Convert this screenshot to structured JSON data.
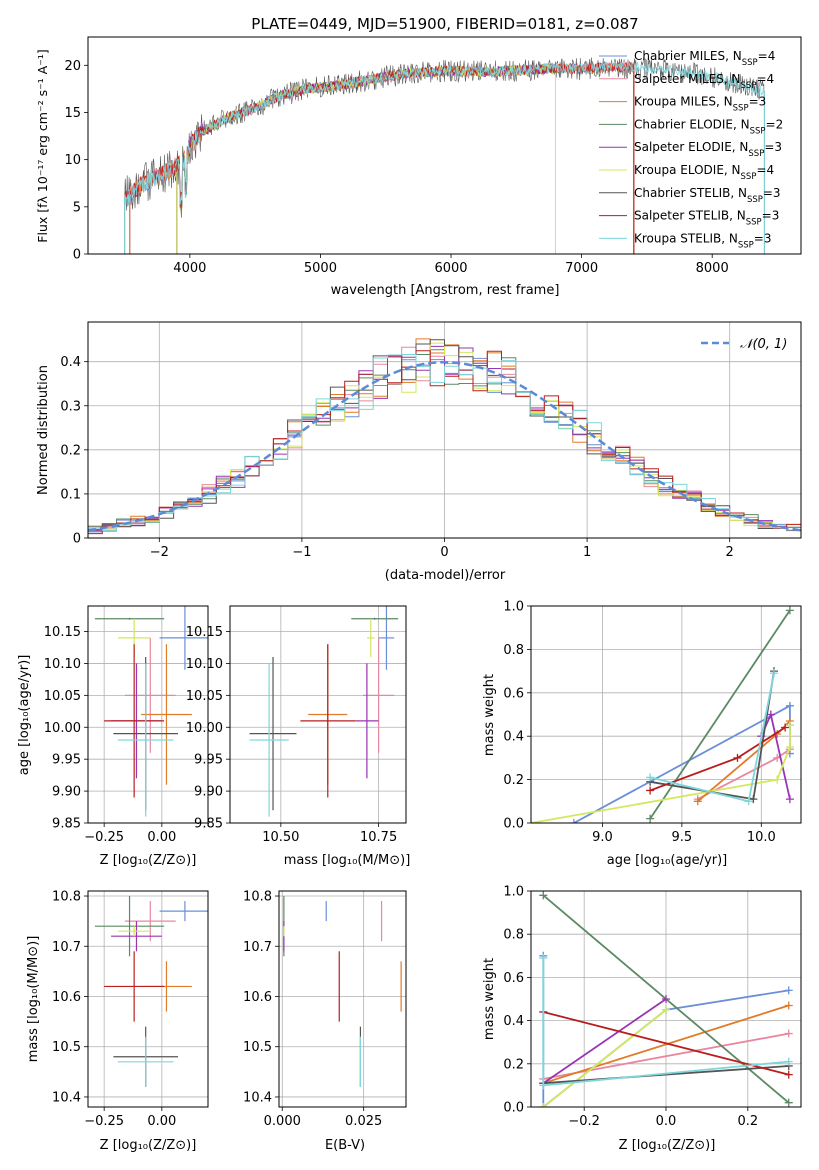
{
  "chart_data": [
    {
      "type": "line",
      "title": "PLATE=0449, MJD=51900, FIBERID=0181, z=0.087",
      "xlabel": "wavelength [Angstrom, rest frame]",
      "ylabel": "Flux [fλ 10⁻¹⁷ erg cm⁻² s⁻¹ A⁻¹]",
      "xlim": [
        3220,
        8680
      ],
      "ylim": [
        0,
        23
      ],
      "xticks": [
        4000,
        5000,
        6000,
        7000,
        8000
      ],
      "yticks": [
        0,
        5,
        10,
        15,
        20
      ],
      "grid": false,
      "legend": "top-right",
      "continuum": {
        "x": [
          3500,
          3650,
          3800,
          3950,
          4000,
          4100,
          4300,
          4500,
          4700,
          4900,
          5100,
          5300,
          5500,
          5700,
          6000,
          6300,
          6600,
          6800,
          7000,
          7200,
          7400,
          7600,
          7800,
          8000,
          8200,
          8400
        ],
        "y": [
          6.0,
          7.5,
          8.5,
          9.8,
          11.5,
          13.0,
          14.5,
          15.5,
          16.8,
          17.5,
          17.8,
          18.3,
          18.8,
          19.2,
          19.4,
          19.3,
          19.5,
          19.7,
          19.6,
          19.8,
          19.8,
          19.6,
          19.2,
          18.8,
          18.0,
          17.2
        ]
      },
      "series": [
        {
          "name": "Chabrier MILES, N_SSP=4",
          "color": "#6a8fd8",
          "x_range": [
            3540,
            7400
          ]
        },
        {
          "name": "Salpeter MILES, N_SSP=4",
          "color": "#e8879f",
          "x_range": [
            3540,
            7400
          ]
        },
        {
          "name": "Kroupa MILES, N_SSP=3",
          "color": "#e07b28",
          "x_range": [
            3540,
            7400
          ]
        },
        {
          "name": "Chabrier ELODIE, N_SSP=2",
          "color": "#5c8a64",
          "x_range": [
            3900,
            6800
          ]
        },
        {
          "name": "Salpeter ELODIE, N_SSP=3",
          "color": "#9a34b4",
          "x_range": [
            3900,
            6800
          ]
        },
        {
          "name": "Kroupa ELODIE, N_SSP=4",
          "color": "#d3e85c",
          "x_range": [
            3900,
            6800
          ]
        },
        {
          "name": "Chabrier STELIB, N_SSP=3",
          "color": "#555555",
          "x_range": [
            3500,
            8400
          ]
        },
        {
          "name": "Salpeter STELIB, N_SSP=3",
          "color": "#b81e1e",
          "x_range": [
            3500,
            7400
          ]
        },
        {
          "name": "Kroupa STELIB, N_SSP=3",
          "color": "#7dd6dc",
          "x_range": [
            3500,
            8400
          ]
        }
      ],
      "legend_entries": [
        {
          "prefix": "Chabrier MILES, N",
          "suffix": "=4"
        },
        {
          "prefix": "Salpeter MILES, N",
          "suffix": "=4"
        },
        {
          "prefix": "Kroupa MILES, N",
          "suffix": "=3"
        },
        {
          "prefix": "Chabrier ELODIE, N",
          "suffix": "=2"
        },
        {
          "prefix": "Salpeter ELODIE, N",
          "suffix": "=3"
        },
        {
          "prefix": "Kroupa ELODIE, N",
          "suffix": "=4"
        },
        {
          "prefix": "Chabrier STELIB, N",
          "suffix": "=3"
        },
        {
          "prefix": "Salpeter STELIB, N",
          "suffix": "=3"
        },
        {
          "prefix": "Kroupa STELIB, N",
          "suffix": "=3"
        }
      ],
      "legend_subscript": "SSP"
    },
    {
      "type": "line",
      "xlabel": "(data-model)/error",
      "ylabel": "Normed distribution",
      "xlim": [
        -2.5,
        2.5
      ],
      "ylim": [
        0,
        0.49
      ],
      "xticks": [
        -2,
        -1,
        0,
        1,
        2
      ],
      "yticks": [
        0.0,
        0.1,
        0.2,
        0.3,
        0.4
      ],
      "grid": true,
      "legend": "top-right",
      "reference_curve": {
        "name": "𝒩(0, 1)",
        "color": "#5b8ad6",
        "style": "dashed"
      },
      "histograms": {
        "bin_width": 0.1,
        "x_start": -2.5,
        "series": [
          {
            "name": "Chabrier MILES",
            "color": "#6a8fd8"
          },
          {
            "name": "Salpeter MILES",
            "color": "#e8879f"
          },
          {
            "name": "Kroupa MILES",
            "color": "#e07b28"
          },
          {
            "name": "Chabrier ELODIE",
            "color": "#5c8a64"
          },
          {
            "name": "Salpeter ELODIE",
            "color": "#9a34b4"
          },
          {
            "name": "Kroupa ELODIE",
            "color": "#d3e85c"
          },
          {
            "name": "Chabrier STELIB",
            "color": "#555555"
          },
          {
            "name": "Salpeter STELIB",
            "color": "#b81e1e"
          },
          {
            "name": "Kroupa STELIB",
            "color": "#7dd6dc"
          }
        ]
      }
    },
    {
      "type": "scatter",
      "xlabel": "Z [log₁₀(Z/Z⊙)]",
      "ylabel": "age  [log₁₀(age/yr)]",
      "xlim": [
        -0.32,
        0.2
      ],
      "ylim": [
        9.85,
        10.19
      ],
      "xticks": [
        -0.25,
        0.0
      ],
      "xticklabels": [
        "−0.25",
        "0.00"
      ],
      "yticks": [
        9.85,
        9.9,
        9.95,
        10.0,
        10.05,
        10.1,
        10.15
      ],
      "yticklabels": [
        "9.85",
        "9.90",
        "9.95",
        "10.00",
        "10.05",
        "10.10",
        "10.15"
      ],
      "grid": true,
      "points": [
        {
          "color": "#6a8fd8",
          "x": 0.1,
          "xerr": 0.11,
          "y": 10.14,
          "yerr": 0.05
        },
        {
          "color": "#e8879f",
          "x": -0.05,
          "xerr": 0.11,
          "y": 10.05,
          "yerr": 0.09
        },
        {
          "color": "#e07b28",
          "x": 0.02,
          "xerr": 0.11,
          "y": 10.02,
          "yerr": 0.11
        },
        {
          "color": "#5c8a64",
          "x": -0.14,
          "xerr": 0.15,
          "y": 10.17,
          "yerr": 0.0
        },
        {
          "color": "#9a34b4",
          "x": -0.11,
          "xerr": 0.11,
          "y": 10.01,
          "yerr": 0.09
        },
        {
          "color": "#d3e85c",
          "x": -0.12,
          "xerr": 0.07,
          "y": 10.14,
          "yerr": 0.03
        },
        {
          "color": "#555555",
          "x": -0.07,
          "xerr": 0.14,
          "y": 9.99,
          "yerr": 0.12
        },
        {
          "color": "#b81e1e",
          "x": -0.12,
          "xerr": 0.13,
          "y": 10.01,
          "yerr": 0.12
        },
        {
          "color": "#7dd6dc",
          "x": -0.07,
          "xerr": 0.12,
          "y": 9.98,
          "yerr": 0.12
        }
      ]
    },
    {
      "type": "scatter",
      "xlabel": "mass [log₁₀(M/M⊙)]",
      "xlim": [
        10.37,
        10.82
      ],
      "ylim": [
        9.85,
        10.19
      ],
      "xticks": [
        10.5,
        10.75
      ],
      "xticklabels": [
        "10.50",
        "10.75"
      ],
      "yticks": [
        9.85,
        9.9,
        9.95,
        10.0,
        10.05,
        10.1,
        10.15
      ],
      "yticklabels": [
        "9.85",
        "9.90",
        "9.95",
        "10.00",
        "10.05",
        "10.10",
        "10.15"
      ],
      "grid": true,
      "points": [
        {
          "color": "#6a8fd8",
          "x": 10.77,
          "xerr": 0.02,
          "y": 10.14,
          "yerr": 0.05
        },
        {
          "color": "#e8879f",
          "x": 10.75,
          "xerr": 0.04,
          "y": 10.05,
          "yerr": 0.09
        },
        {
          "color": "#e07b28",
          "x": 10.62,
          "xerr": 0.05,
          "y": 10.02,
          "yerr": 0.11
        },
        {
          "color": "#5c8a64",
          "x": 10.74,
          "xerr": 0.06,
          "y": 10.17,
          "yerr": 0.0
        },
        {
          "color": "#9a34b4",
          "x": 10.72,
          "xerr": 0.03,
          "y": 10.01,
          "yerr": 0.09
        },
        {
          "color": "#d3e85c",
          "x": 10.73,
          "xerr": 0.01,
          "y": 10.14,
          "yerr": 0.03
        },
        {
          "color": "#555555",
          "x": 10.48,
          "xerr": 0.06,
          "y": 9.99,
          "yerr": 0.12
        },
        {
          "color": "#b81e1e",
          "x": 10.62,
          "xerr": 0.07,
          "y": 10.01,
          "yerr": 0.12
        },
        {
          "color": "#7dd6dc",
          "x": 10.47,
          "xerr": 0.05,
          "y": 9.98,
          "yerr": 0.12
        }
      ]
    },
    {
      "type": "line",
      "xlabel": "age  [log₁₀(age/yr)]",
      "ylabel": "mass weight",
      "xlim": [
        8.55,
        10.25
      ],
      "ylim": [
        0.0,
        1.0
      ],
      "xticks": [
        9.0,
        9.5,
        10.0
      ],
      "xticklabels": [
        "9.0",
        "9.5",
        "10.0"
      ],
      "yticks": [
        0.0,
        0.2,
        0.4,
        0.6,
        0.8,
        1.0
      ],
      "yticklabels": [
        "0.0",
        "0.2",
        "0.4",
        "0.6",
        "0.8",
        "1.0"
      ],
      "grid": true,
      "series": [
        {
          "color": "#6a8fd8",
          "x": [
            8.82,
            10.18,
            10.18,
            10.18
          ],
          "y": [
            0.0,
            0.54,
            0.45,
            0.32
          ]
        },
        {
          "color": "#e8879f",
          "x": [
            9.6,
            10.1,
            10.18
          ],
          "y": [
            0.11,
            0.3,
            0.34
          ]
        },
        {
          "color": "#e07b28",
          "x": [
            9.6,
            10.1,
            10.18
          ],
          "y": [
            0.1,
            0.41,
            0.47
          ]
        },
        {
          "color": "#5c8a64",
          "x": [
            9.3,
            10.18
          ],
          "y": [
            0.02,
            0.98
          ]
        },
        {
          "color": "#9a34b4",
          "x": [
            10.0,
            10.06,
            10.18
          ],
          "y": [
            0.4,
            0.5,
            0.11
          ]
        },
        {
          "color": "#d3e85c",
          "x": [
            8.55,
            10.1,
            10.18,
            10.18
          ],
          "y": [
            0.0,
            0.2,
            0.35,
            0.45
          ]
        },
        {
          "color": "#555555",
          "x": [
            9.3,
            9.95,
            10.08
          ],
          "y": [
            0.19,
            0.11,
            0.7
          ]
        },
        {
          "color": "#b81e1e",
          "x": [
            9.3,
            9.85,
            10.15
          ],
          "y": [
            0.15,
            0.3,
            0.44
          ]
        },
        {
          "color": "#7dd6dc",
          "x": [
            9.3,
            9.92,
            10.08
          ],
          "y": [
            0.21,
            0.1,
            0.69
          ]
        }
      ]
    },
    {
      "type": "scatter",
      "xlabel": "Z [log₁₀(Z/Z⊙)]",
      "ylabel": "mass [log₁₀(M/M⊙)]",
      "xlim": [
        -0.32,
        0.2
      ],
      "ylim": [
        10.38,
        10.81
      ],
      "xticks": [
        -0.25,
        0.0
      ],
      "xticklabels": [
        "−0.25",
        "0.00"
      ],
      "yticks": [
        10.4,
        10.5,
        10.6,
        10.7,
        10.8
      ],
      "yticklabels": [
        "10.4",
        "10.5",
        "10.6",
        "10.7",
        "10.8"
      ],
      "grid": true,
      "points": [
        {
          "color": "#6a8fd8",
          "x": 0.1,
          "xerr": 0.11,
          "y": 10.77,
          "yerr": 0.02
        },
        {
          "color": "#e8879f",
          "x": -0.05,
          "xerr": 0.11,
          "y": 10.75,
          "yerr": 0.04
        },
        {
          "color": "#e07b28",
          "x": 0.02,
          "xerr": 0.11,
          "y": 10.62,
          "yerr": 0.05
        },
        {
          "color": "#5c8a64",
          "x": -0.14,
          "xerr": 0.15,
          "y": 10.74,
          "yerr": 0.06
        },
        {
          "color": "#9a34b4",
          "x": -0.11,
          "xerr": 0.11,
          "y": 10.72,
          "yerr": 0.03
        },
        {
          "color": "#d3e85c",
          "x": -0.12,
          "xerr": 0.07,
          "y": 10.73,
          "yerr": 0.01
        },
        {
          "color": "#555555",
          "x": -0.07,
          "xerr": 0.14,
          "y": 10.48,
          "yerr": 0.06
        },
        {
          "color": "#b81e1e",
          "x": -0.12,
          "xerr": 0.13,
          "y": 10.62,
          "yerr": 0.07
        },
        {
          "color": "#7dd6dc",
          "x": -0.07,
          "xerr": 0.12,
          "y": 10.47,
          "yerr": 0.05
        }
      ]
    },
    {
      "type": "scatter",
      "xlabel": "E(B-V)",
      "xlim": [
        -0.001,
        0.038
      ],
      "ylim": [
        10.38,
        10.81
      ],
      "xticks": [
        0.0,
        0.025
      ],
      "xticklabels": [
        "0.000",
        "0.025"
      ],
      "yticks": [
        10.4,
        10.5,
        10.6,
        10.7,
        10.8
      ],
      "yticklabels": [
        "10.4",
        "10.5",
        "10.6",
        "10.7",
        "10.8"
      ],
      "grid": true,
      "points": [
        {
          "color": "#6a8fd8",
          "x": 0.0135,
          "xerr": 0.0,
          "y": 10.77,
          "yerr": 0.02
        },
        {
          "color": "#e8879f",
          "x": 0.0305,
          "xerr": 0.0,
          "y": 10.75,
          "yerr": 0.04
        },
        {
          "color": "#e07b28",
          "x": 0.0365,
          "xerr": 0.0,
          "y": 10.62,
          "yerr": 0.05
        },
        {
          "color": "#5c8a64",
          "x": 0.0005,
          "xerr": 0.0,
          "y": 10.74,
          "yerr": 0.06
        },
        {
          "color": "#9a34b4",
          "x": 0.0005,
          "xerr": 0.0,
          "y": 10.72,
          "yerr": 0.03
        },
        {
          "color": "#d3e85c",
          "x": 0.0005,
          "xerr": 0.0,
          "y": 10.73,
          "yerr": 0.01
        },
        {
          "color": "#555555",
          "x": 0.024,
          "xerr": 0.0,
          "y": 10.48,
          "yerr": 0.06
        },
        {
          "color": "#b81e1e",
          "x": 0.0175,
          "xerr": 0.0,
          "y": 10.62,
          "yerr": 0.07
        },
        {
          "color": "#7dd6dc",
          "x": 0.024,
          "xerr": 0.0,
          "y": 10.47,
          "yerr": 0.05
        }
      ]
    },
    {
      "type": "line",
      "xlabel": "Z [log₁₀(Z/Z⊙)]",
      "ylabel": "mass weight",
      "xlim": [
        -0.33,
        0.33
      ],
      "ylim": [
        0.0,
        1.0
      ],
      "xticks": [
        -0.2,
        0.0,
        0.2
      ],
      "xticklabels": [
        "−0.2",
        "0.0",
        "0.2"
      ],
      "yticks": [
        0.0,
        0.2,
        0.4,
        0.6,
        0.8,
        1.0
      ],
      "yticklabels": [
        "0.0",
        "0.2",
        "0.4",
        "0.6",
        "0.8",
        "1.0"
      ],
      "grid": true,
      "series": [
        {
          "color": "#6a8fd8",
          "x": [
            -0.3,
            -0.3,
            0.0,
            0.3
          ],
          "y": [
            0.7,
            0.0,
            0.45,
            0.54
          ]
        },
        {
          "color": "#e8879f",
          "x": [
            -0.3,
            0.3
          ],
          "y": [
            0.13,
            0.34
          ]
        },
        {
          "color": "#e07b28",
          "x": [
            -0.3,
            0.3
          ],
          "y": [
            0.11,
            0.47
          ]
        },
        {
          "color": "#5c8a64",
          "x": [
            -0.3,
            0.3
          ],
          "y": [
            0.98,
            0.02
          ]
        },
        {
          "color": "#9a34b4",
          "x": [
            -0.3,
            0.0
          ],
          "y": [
            0.11,
            0.5
          ]
        },
        {
          "color": "#d3e85c",
          "x": [
            -0.3,
            0.0
          ],
          "y": [
            0.0,
            0.45
          ]
        },
        {
          "color": "#555555",
          "x": [
            -0.3,
            0.3
          ],
          "y": [
            0.11,
            0.19
          ]
        },
        {
          "color": "#b81e1e",
          "x": [
            -0.3,
            0.3
          ],
          "y": [
            0.44,
            0.15
          ]
        },
        {
          "color": "#7dd6dc",
          "x": [
            -0.3,
            -0.3,
            0.3
          ],
          "y": [
            0.69,
            0.1,
            0.21
          ]
        }
      ]
    }
  ]
}
